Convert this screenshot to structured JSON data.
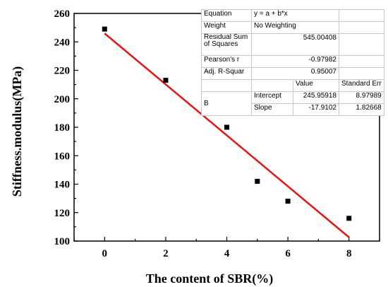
{
  "chart_data": {
    "type": "scatter",
    "xlabel": "The content of SBR(%)",
    "ylabel": "Stiffness.modulus(MPa)",
    "xlim": [
      -1,
      9
    ],
    "ylim": [
      100,
      260
    ],
    "x_ticks": [
      0,
      2,
      4,
      6,
      8
    ],
    "y_ticks": [
      100,
      120,
      140,
      160,
      180,
      200,
      220,
      240,
      260
    ],
    "x_tick_labels": [
      "0",
      "2",
      "4",
      "6",
      "8"
    ],
    "y_tick_labels": [
      "100",
      "120",
      "140",
      "160",
      "180",
      "200",
      "220",
      "240",
      "260"
    ],
    "series": [
      {
        "type": "scatter",
        "marker": "square",
        "color": "#000000",
        "x": [
          0,
          2,
          4,
          5,
          6,
          8
        ],
        "y": [
          249,
          213,
          180,
          142,
          128,
          116
        ]
      },
      {
        "type": "line",
        "color": "#e8140f",
        "x": [
          0,
          8
        ],
        "y": [
          245.95918,
          102.6776
        ]
      }
    ],
    "fit_table": {
      "equation_label": "Equation",
      "equation_value": "y = a + b*x",
      "weight_label": "Weight",
      "weight_value": "No Weighting",
      "rss_label": "Residual Sum of Squares",
      "rss_value": "545.00408",
      "pearson_label": "Pearson's r",
      "pearson_value": "-0.97982",
      "adjr_label": "Adj. R-Squar",
      "adjr_value": "0.95007",
      "value_header": "Value",
      "stderr_header": "Standard Err",
      "group_label": "B",
      "intercept_label": "Intercept",
      "intercept_value": "245.95918",
      "intercept_err": "8.97989",
      "slope_label": "Slope",
      "slope_value": "-17.9102",
      "slope_err": "1.82668"
    }
  }
}
